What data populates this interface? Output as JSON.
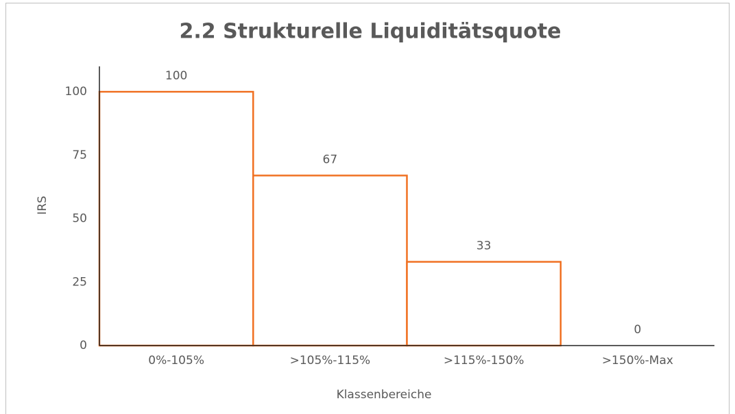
{
  "chart_data": {
    "type": "bar",
    "title": "2.2 Strukturelle Liquiditätsquote",
    "x_label": "Klassenbereiche",
    "y_label": "IRS",
    "categories": [
      "0%-105%",
      ">105%-115%",
      ">115%-150%",
      ">150%-Max"
    ],
    "values": [
      100,
      67,
      33,
      0
    ],
    "color": "#f07021",
    "ylim": [
      0,
      110
    ],
    "yticks": [
      0,
      25,
      50,
      75,
      100
    ],
    "grid": false
  }
}
